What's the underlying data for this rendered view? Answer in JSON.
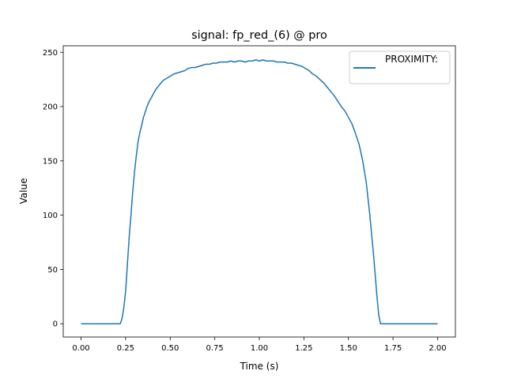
{
  "chart_data": {
    "type": "line",
    "title": "signal: fp_red_(6) @ pro",
    "xlabel": "Time (s)",
    "ylabel": "Value",
    "xlim": [
      -0.1,
      2.1
    ],
    "ylim": [
      -12.2,
      256
    ],
    "xticks": [
      0.0,
      0.25,
      0.5,
      0.75,
      1.0,
      1.25,
      1.5,
      1.75,
      2.0
    ],
    "xtick_labels": [
      "0.00",
      "0.25",
      "0.50",
      "0.75",
      "1.00",
      "1.25",
      "1.50",
      "1.75",
      "2.00"
    ],
    "yticks": [
      0,
      50,
      100,
      150,
      200,
      250
    ],
    "ytick_labels": [
      "0",
      "50",
      "100",
      "150",
      "200",
      "250"
    ],
    "grid": false,
    "legend_position": "top-right",
    "series": [
      {
        "name": "PROXIMITY:",
        "color": "#1f77b4",
        "x": [
          0.0,
          0.05,
          0.1,
          0.15,
          0.2,
          0.22,
          0.23,
          0.24,
          0.25,
          0.26,
          0.27,
          0.28,
          0.29,
          0.3,
          0.31,
          0.32,
          0.33,
          0.34,
          0.35,
          0.36,
          0.37,
          0.38,
          0.39,
          0.4,
          0.41,
          0.42,
          0.43,
          0.44,
          0.45,
          0.46,
          0.47,
          0.48,
          0.49,
          0.5,
          0.52,
          0.54,
          0.56,
          0.58,
          0.6,
          0.62,
          0.64,
          0.66,
          0.68,
          0.7,
          0.72,
          0.74,
          0.76,
          0.78,
          0.8,
          0.82,
          0.84,
          0.86,
          0.88,
          0.9,
          0.92,
          0.94,
          0.96,
          0.98,
          1.0,
          1.02,
          1.04,
          1.06,
          1.08,
          1.1,
          1.12,
          1.14,
          1.16,
          1.18,
          1.2,
          1.22,
          1.24,
          1.26,
          1.28,
          1.3,
          1.32,
          1.34,
          1.36,
          1.38,
          1.4,
          1.42,
          1.44,
          1.46,
          1.48,
          1.5,
          1.52,
          1.54,
          1.56,
          1.58,
          1.6,
          1.61,
          1.62,
          1.63,
          1.64,
          1.65,
          1.66,
          1.67,
          1.68,
          1.69,
          1.7,
          1.71,
          1.72,
          1.75,
          1.8,
          1.9,
          2.0
        ],
        "y": [
          0,
          0,
          0,
          0,
          0,
          0,
          5,
          15,
          30,
          55,
          80,
          100,
          122,
          140,
          155,
          168,
          176,
          183,
          190,
          195,
          200,
          204,
          207,
          210,
          213,
          216,
          218,
          220,
          222,
          224,
          225,
          226,
          227,
          228,
          230,
          231,
          232,
          233,
          235,
          236,
          236,
          237,
          238,
          239,
          239,
          240,
          240,
          241,
          241,
          241,
          242,
          241,
          242,
          242,
          241,
          242,
          242,
          243,
          242,
          243,
          242,
          242,
          242,
          241,
          241,
          241,
          240,
          240,
          239,
          238,
          237,
          235,
          233,
          230,
          228,
          225,
          222,
          218,
          214,
          210,
          205,
          200,
          196,
          190,
          184,
          175,
          165,
          150,
          130,
          115,
          100,
          82,
          65,
          45,
          25,
          8,
          0,
          0,
          0,
          0,
          0,
          0,
          0,
          0,
          0
        ]
      }
    ]
  }
}
